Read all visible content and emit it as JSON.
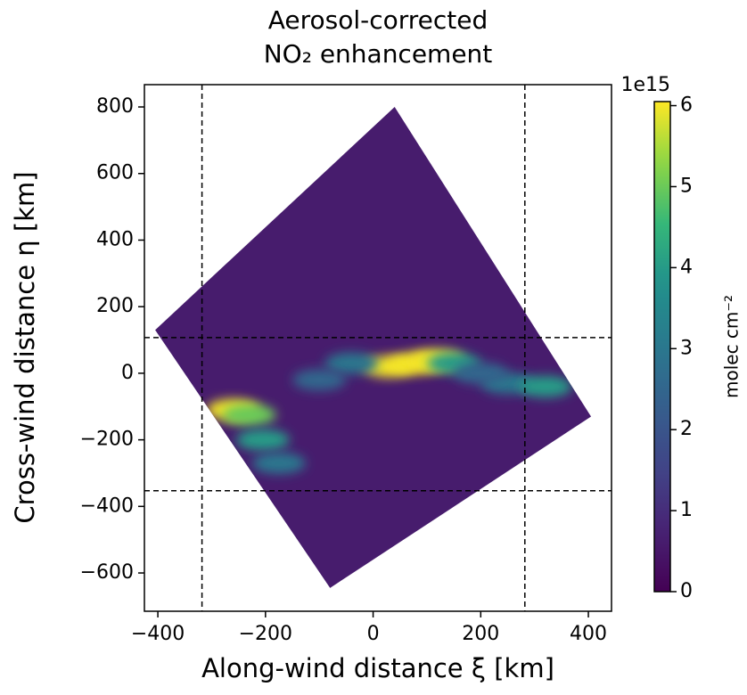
{
  "chart_data": {
    "type": "heatmap",
    "title": [
      "Aerosol-corrected",
      "NO₂ enhancement"
    ],
    "xlabel": "Along-wind distance ξ [km]",
    "ylabel": "Cross-wind distance η [km]",
    "xlim": [
      -425,
      443
    ],
    "ylim": [
      -715,
      867
    ],
    "xticks": [
      {
        "value": -400,
        "label": "−400"
      },
      {
        "value": -200,
        "label": "−200"
      },
      0,
      200,
      400
    ],
    "yticks": [
      {
        "value": -600,
        "label": "−600"
      },
      {
        "value": -400,
        "label": "−400"
      },
      {
        "value": -200,
        "label": "−200"
      },
      0,
      200,
      400,
      600,
      800
    ],
    "swath": {
      "x": [
        -405,
        40,
        405,
        -80
      ],
      "y": [
        130,
        800,
        -130,
        -645
      ],
      "value": 0.6
    },
    "hotspots": {
      "x": [
        -260,
        -230,
        -205,
        -175,
        30,
        80,
        120,
        150,
        -40,
        -100,
        250,
        320,
        200
      ],
      "y": [
        -110,
        -125,
        -200,
        -270,
        20,
        30,
        40,
        30,
        30,
        -20,
        -30,
        -40,
        0
      ],
      "values": [
        6,
        5,
        4,
        3,
        6,
        6,
        6,
        4,
        3,
        2.5,
        3,
        4,
        2.5
      ]
    },
    "vlines": [
      -318,
      282
    ],
    "hlines": [
      107,
      -353
    ],
    "colorbar": {
      "clim": [
        0,
        6.05
      ],
      "ticks": [
        0,
        1,
        2,
        3,
        4,
        5,
        6
      ],
      "offset_text": "1e15",
      "label": "molec cm⁻²",
      "cmap": "viridis"
    }
  }
}
